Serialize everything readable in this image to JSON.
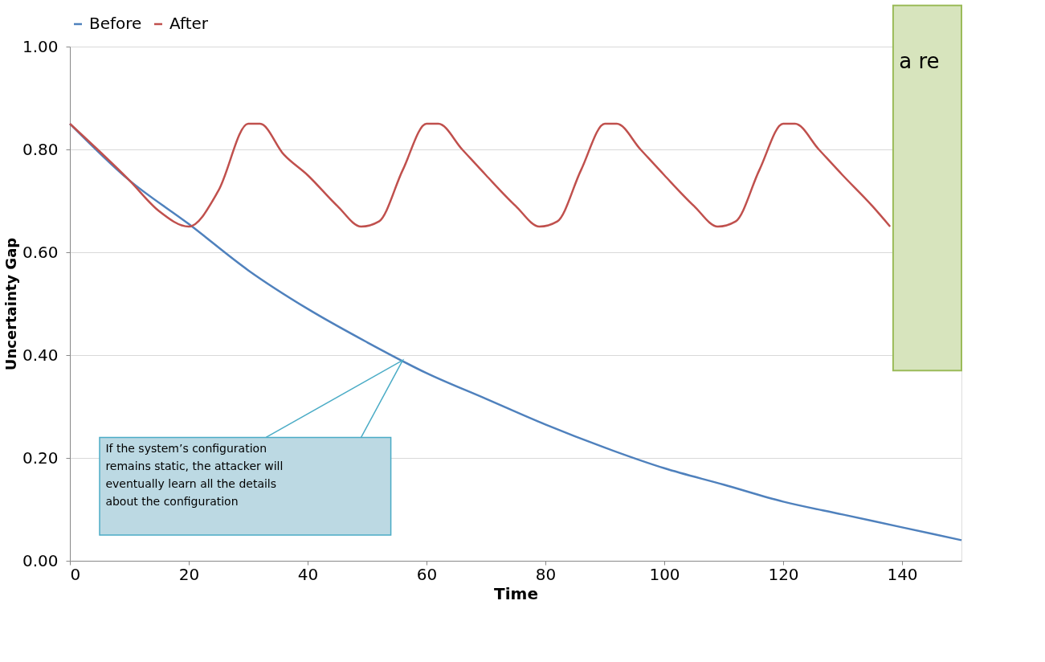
{
  "chart_data": {
    "type": "line",
    "xlabel": "Time",
    "ylabel": "Uncertainty Gap",
    "xlim": [
      0,
      150
    ],
    "xticks": [
      0,
      20,
      40,
      60,
      80,
      100,
      120,
      140
    ],
    "ylim": [
      0,
      1
    ],
    "yticks": [
      {
        "value": 0,
        "label": "0.00"
      },
      {
        "value": 0.2,
        "label": "0.20"
      },
      {
        "value": 0.4,
        "label": "0.40"
      },
      {
        "value": 0.6,
        "label": "0.60"
      },
      {
        "value": 0.8,
        "label": "0.80"
      },
      {
        "value": 1,
        "label": "1.00"
      }
    ],
    "grid": "y",
    "legend": "top",
    "marker": "none",
    "line_style": "solid",
    "series": [
      {
        "name": "Before",
        "color": "#4f81bd",
        "x": [
          0,
          10,
          20,
          30,
          40,
          50,
          60,
          70,
          80,
          90,
          100,
          110,
          120,
          130,
          140,
          150
        ],
        "values": [
          0.85,
          0.74,
          0.655,
          0.565,
          0.49,
          0.425,
          0.365,
          0.315,
          0.265,
          0.22,
          0.18,
          0.148,
          0.115,
          0.09,
          0.065,
          0.04
        ]
      },
      {
        "name": "After",
        "color": "#c0504d",
        "x": [
          0,
          10,
          15,
          20,
          25,
          30,
          32,
          36,
          40,
          45,
          49,
          52,
          56,
          60,
          62,
          66,
          70,
          75,
          79,
          82,
          86,
          90,
          92,
          96,
          100,
          105,
          109,
          112,
          116,
          120,
          122,
          126,
          130,
          135,
          138
        ],
        "values": [
          0.85,
          0.74,
          0.68,
          0.65,
          0.72,
          0.85,
          0.85,
          0.79,
          0.75,
          0.69,
          0.65,
          0.66,
          0.76,
          0.85,
          0.85,
          0.8,
          0.75,
          0.69,
          0.65,
          0.66,
          0.76,
          0.85,
          0.85,
          0.8,
          0.75,
          0.69,
          0.65,
          0.66,
          0.76,
          0.85,
          0.85,
          0.8,
          0.75,
          0.69,
          0.65
        ]
      }
    ],
    "annotations": [
      "If the system’s configuration\nremains static, the attacker will\neventually learn all the details\nabout the configuration",
      "a re"
    ]
  }
}
